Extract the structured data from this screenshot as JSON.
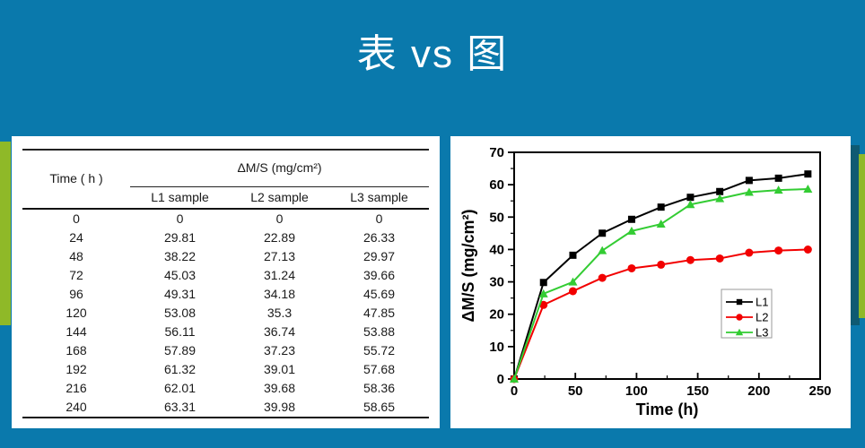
{
  "slide": {
    "title": "表 vs 图"
  },
  "colors": {
    "background": "#0a79ac",
    "panel": "#ffffff",
    "accent_olive": "#8fb928",
    "accent_dark_teal": "#0f5a72",
    "series_l1": "#000000",
    "series_l2": "#f20000",
    "series_l3": "#33cc33",
    "legend_border": "#999999"
  },
  "table": {
    "time_header": "Time ( h )",
    "group_header": "ΔM/S (mg/cm²)",
    "col_headers": [
      "L1 sample",
      "L2 sample",
      "L3 sample"
    ],
    "rows": [
      [
        "0",
        "0",
        "0",
        "0"
      ],
      [
        "24",
        "29.81",
        "22.89",
        "26.33"
      ],
      [
        "48",
        "38.22",
        "27.13",
        "29.97"
      ],
      [
        "72",
        "45.03",
        "31.24",
        "39.66"
      ],
      [
        "96",
        "49.31",
        "34.18",
        "45.69"
      ],
      [
        "120",
        "53.08",
        "35.3",
        "47.85"
      ],
      [
        "144",
        "56.11",
        "36.74",
        "53.88"
      ],
      [
        "168",
        "57.89",
        "37.23",
        "55.72"
      ],
      [
        "192",
        "61.32",
        "39.01",
        "57.68"
      ],
      [
        "216",
        "62.01",
        "39.68",
        "58.36"
      ],
      [
        "240",
        "63.31",
        "39.98",
        "58.65"
      ]
    ]
  },
  "chart_data": {
    "type": "line",
    "x": [
      0,
      24,
      48,
      72,
      96,
      120,
      144,
      168,
      192,
      216,
      240
    ],
    "series": [
      {
        "name": "L1",
        "marker": "square",
        "color": "#000000",
        "values": [
          0,
          29.81,
          38.22,
          45.03,
          49.31,
          53.08,
          56.11,
          57.89,
          61.32,
          62.01,
          63.31
        ]
      },
      {
        "name": "L2",
        "marker": "circle",
        "color": "#f20000",
        "values": [
          0,
          22.89,
          27.13,
          31.24,
          34.18,
          35.3,
          36.74,
          37.23,
          39.01,
          39.68,
          39.98
        ]
      },
      {
        "name": "L3",
        "marker": "triangle",
        "color": "#33cc33",
        "values": [
          0,
          26.33,
          29.97,
          39.66,
          45.69,
          47.85,
          53.88,
          55.72,
          57.68,
          58.36,
          58.65
        ]
      }
    ],
    "title": "",
    "xlabel": "Time (h)",
    "ylabel": "ΔM/S (mg/cm²)",
    "xlim": [
      0,
      250
    ],
    "ylim": [
      0,
      70
    ],
    "x_major_ticks": [
      0,
      50,
      100,
      150,
      200,
      250
    ],
    "x_minor_step": 25,
    "y_major_ticks": [
      0,
      10,
      20,
      30,
      40,
      50,
      60,
      70
    ],
    "y_minor_step": 5,
    "grid": false,
    "legend": {
      "position": "inside-right",
      "labels": [
        "L1",
        "L2",
        "L3"
      ]
    }
  }
}
